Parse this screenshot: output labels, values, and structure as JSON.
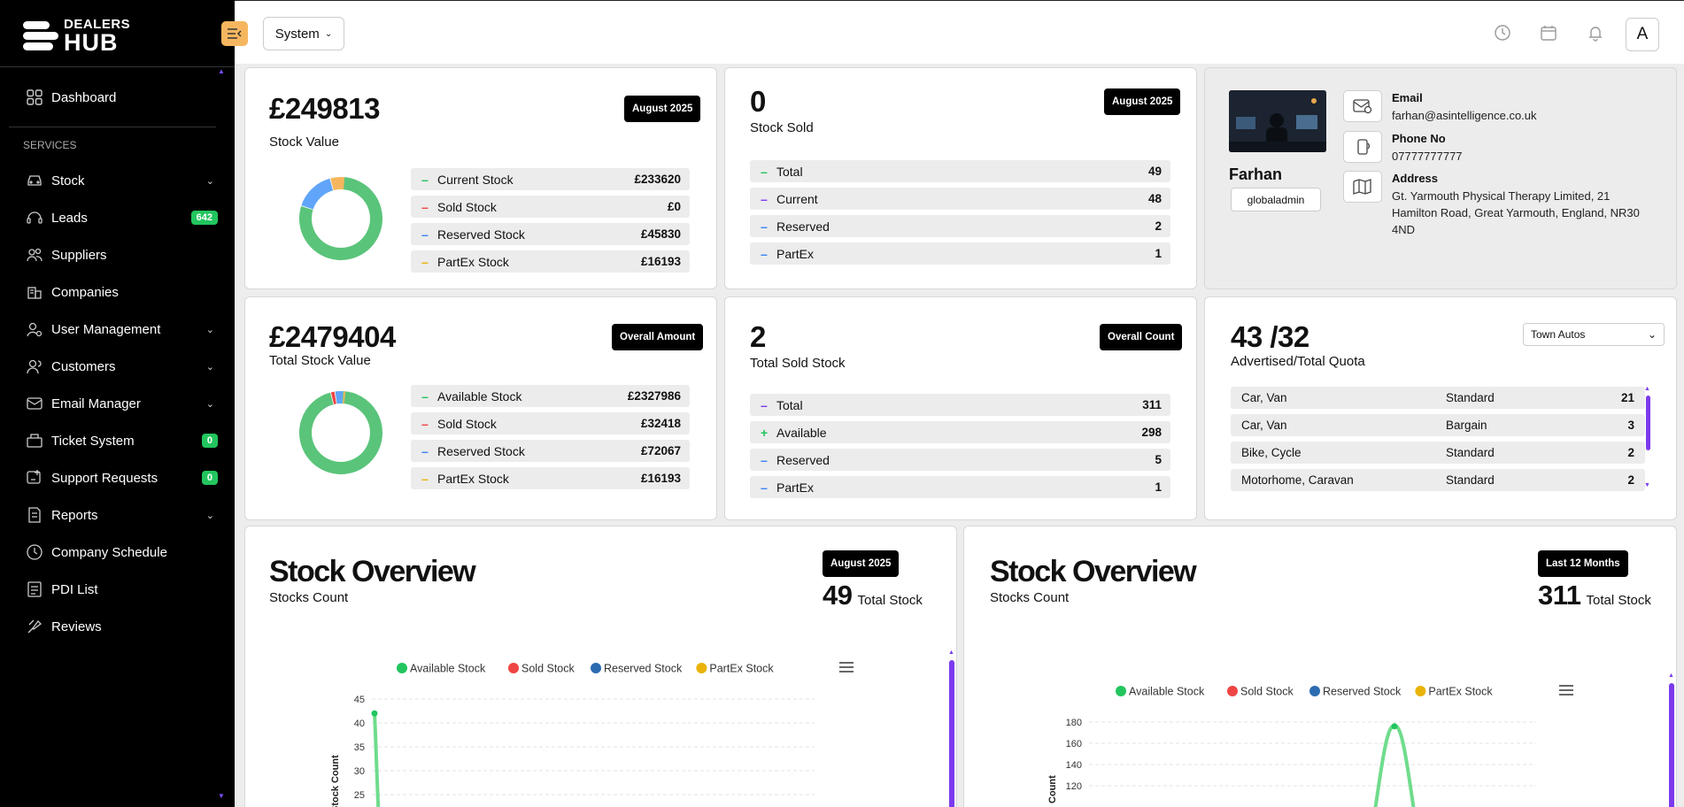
{
  "brand": {
    "line1": "DEALERS",
    "line2": "HUB"
  },
  "sidebar": {
    "section": "SERVICES",
    "dashboard": "Dashboard",
    "items": [
      {
        "label": "Stock",
        "icon": "car-icon",
        "chevron": true
      },
      {
        "label": "Leads",
        "icon": "headset-icon",
        "badge": "642"
      },
      {
        "label": "Suppliers",
        "icon": "users-icon"
      },
      {
        "label": "Companies",
        "icon": "building-icon"
      },
      {
        "label": "User Management",
        "icon": "user-cog-icon",
        "chevron": true
      },
      {
        "label": "Customers",
        "icon": "user-group-icon",
        "chevron": true
      },
      {
        "label": "Email Manager",
        "icon": "mail-icon",
        "chevron": true
      },
      {
        "label": "Ticket System",
        "icon": "ticket-icon",
        "badge": "0"
      },
      {
        "label": "Support Requests",
        "icon": "support-icon",
        "badge": "0"
      },
      {
        "label": "Reports",
        "icon": "report-icon",
        "chevron": true
      },
      {
        "label": "Company Schedule",
        "icon": "clock-icon"
      },
      {
        "label": "PDI List",
        "icon": "list-icon"
      },
      {
        "label": "Reviews",
        "icon": "review-icon"
      }
    ]
  },
  "header": {
    "system_label": "System",
    "avatar_letter": "A"
  },
  "stock_value_card": {
    "amount": "£249813",
    "label": "Stock Value",
    "period": "August 2025",
    "rows": [
      {
        "label": "Current Stock",
        "value": "£233620",
        "color": "#22c55e",
        "marker": "–"
      },
      {
        "label": "Sold Stock",
        "value": "£0",
        "color": "#ef4444",
        "marker": "–"
      },
      {
        "label": "Reserved Stock",
        "value": "£45830",
        "color": "#3b82f6",
        "marker": "–"
      },
      {
        "label": "PartEx Stock",
        "value": "£16193",
        "color": "#eab308",
        "marker": "–"
      }
    ]
  },
  "stock_sold_card": {
    "amount": "0",
    "label": "Stock Sold",
    "period": "August 2025",
    "rows": [
      {
        "label": "Total",
        "value": "49",
        "color": "#22c55e",
        "marker": "–"
      },
      {
        "label": "Current",
        "value": "48",
        "color": "#7c3aed",
        "marker": "–"
      },
      {
        "label": "Reserved",
        "value": "2",
        "color": "#3b82f6",
        "marker": "–"
      },
      {
        "label": "PartEx",
        "value": "1",
        "color": "#3b82f6",
        "marker": "–"
      }
    ]
  },
  "profile": {
    "name": "Farhan",
    "role": "globaladmin",
    "email_label": "Email",
    "email": "farhan@asintelligence.co.uk",
    "phone_label": "Phone No",
    "phone": "07777777777",
    "address_label": "Address",
    "address": "Gt. Yarmouth Physical Therapy Limited, 21 Hamilton Road, Great Yarmouth, England, NR30 4ND"
  },
  "total_value_card": {
    "amount": "£2479404",
    "label": "Total Stock Value",
    "period": "Overall Amount",
    "rows": [
      {
        "label": "Available Stock",
        "value": "£2327986",
        "color": "#22c55e",
        "marker": "–"
      },
      {
        "label": "Sold Stock",
        "value": "£32418",
        "color": "#ef4444",
        "marker": "–"
      },
      {
        "label": "Reserved Stock",
        "value": "£72067",
        "color": "#3b82f6",
        "marker": "–"
      },
      {
        "label": "PartEx Stock",
        "value": "£16193",
        "color": "#eab308",
        "marker": "–"
      }
    ]
  },
  "total_sold_card": {
    "amount": "2",
    "label": "Total Sold Stock",
    "period": "Overall Count",
    "rows": [
      {
        "label": "Total",
        "value": "311",
        "color": "#7c3aed",
        "marker": "–"
      },
      {
        "label": "Available",
        "value": "298",
        "color": "#22c55e",
        "marker": "+"
      },
      {
        "label": "Reserved",
        "value": "5",
        "color": "#3b82f6",
        "marker": "–"
      },
      {
        "label": "PartEx",
        "value": "1",
        "color": "#3b82f6",
        "marker": "–"
      }
    ]
  },
  "quota_card": {
    "amount": "43 /32",
    "label": "Advertised/Total Quota",
    "dealer": "Town Autos",
    "rows": [
      {
        "type": "Car, Van",
        "plan": "Standard",
        "count": "21"
      },
      {
        "type": "Car, Van",
        "plan": "Bargain",
        "count": "3"
      },
      {
        "type": "Bike, Cycle",
        "plan": "Standard",
        "count": "2"
      },
      {
        "type": "Motorhome, Caravan",
        "plan": "Standard",
        "count": "2"
      }
    ]
  },
  "overview_left": {
    "title": "Stock Overview",
    "subtitle": "Stocks Count",
    "period": "August 2025",
    "count": "49",
    "count_label": "Total Stock"
  },
  "overview_right": {
    "title": "Stock Overview",
    "subtitle": "Stocks Count",
    "period": "Last 12 Months",
    "count": "311",
    "count_label": "Total Stock"
  },
  "chart_data": [
    {
      "type": "line",
      "title": "",
      "ylabel": "Stock Count",
      "ylim": [
        25,
        45
      ],
      "yticks": [
        "45",
        "40",
        "35",
        "30",
        "25"
      ],
      "series": [
        {
          "name": "Available Stock",
          "color": "#22c55e",
          "values": [
            42
          ]
        },
        {
          "name": "Sold Stock",
          "color": "#ef4444",
          "values": []
        },
        {
          "name": "Reserved Stock",
          "color": "#2b6cb0",
          "values": []
        },
        {
          "name": "PartEx Stock",
          "color": "#eab308",
          "values": []
        }
      ]
    },
    {
      "type": "line",
      "title": "",
      "ylabel": "Count",
      "ylim": [
        120,
        180
      ],
      "yticks": [
        "180",
        "160",
        "140",
        "120"
      ],
      "series": [
        {
          "name": "Available Stock",
          "color": "#22c55e",
          "values": [
            176
          ]
        },
        {
          "name": "Sold Stock",
          "color": "#ef4444",
          "values": []
        },
        {
          "name": "Reserved Stock",
          "color": "#2b6cb0",
          "values": []
        },
        {
          "name": "PartEx Stock",
          "color": "#eab308",
          "values": []
        }
      ]
    }
  ]
}
